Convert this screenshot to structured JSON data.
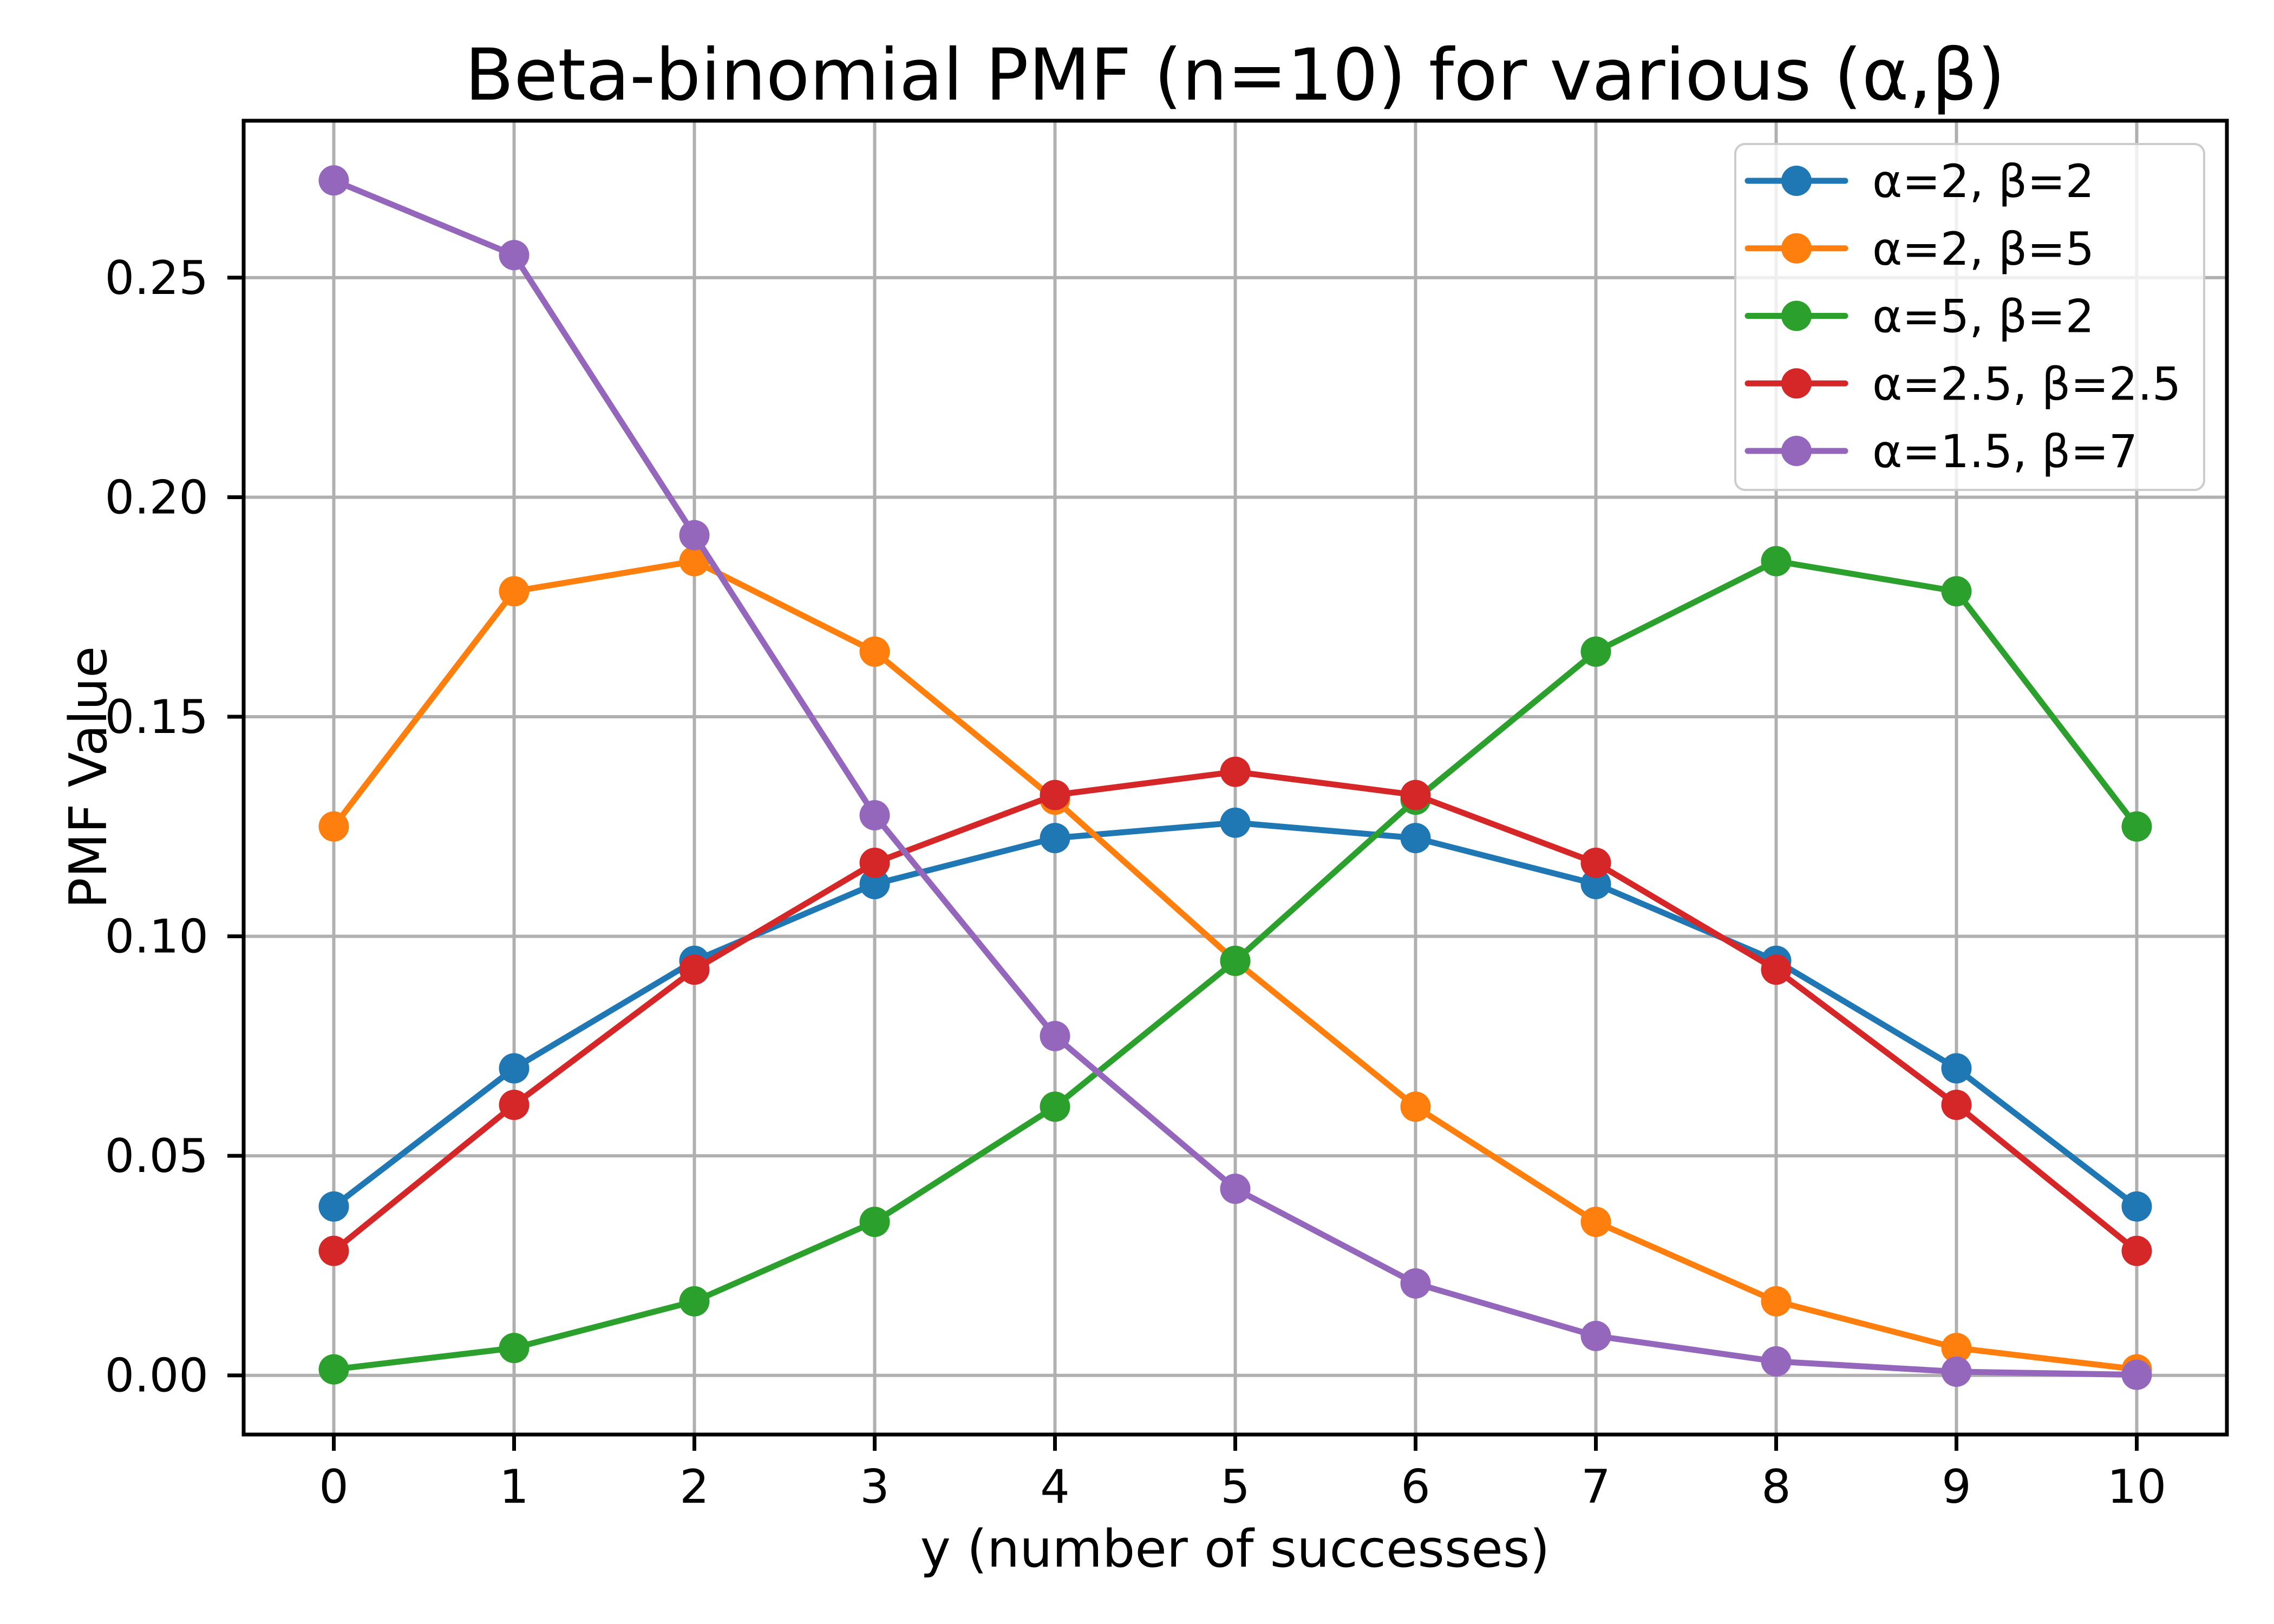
{
  "chart_data": {
    "type": "line",
    "title": "Beta-binomial PMF (n=10) for various (α,β)",
    "xlabel": "y (number of successes)",
    "ylabel": "PMF Value",
    "n": 10,
    "x": [
      0,
      1,
      2,
      3,
      4,
      5,
      6,
      7,
      8,
      9,
      10
    ],
    "xlim": [
      -0.5,
      10.5
    ],
    "ylim": [
      -0.013475,
      0.285743
    ],
    "xticks": [
      0,
      1,
      2,
      3,
      4,
      5,
      6,
      7,
      8,
      9,
      10
    ],
    "xtick_labels": [
      "0",
      "1",
      "2",
      "3",
      "4",
      "5",
      "6",
      "7",
      "8",
      "9",
      "10"
    ],
    "yticks": [
      0.0,
      0.05,
      0.1,
      0.15,
      0.2,
      0.25
    ],
    "ytick_labels": [
      "0.00",
      "0.05",
      "0.10",
      "0.15",
      "0.20",
      "0.25"
    ],
    "grid": true,
    "grid_color": "#b0b0b0",
    "spine_color": "#000000",
    "text_color": "#000000",
    "marker": "o",
    "legend": {
      "position": "upper right",
      "frame": true,
      "border_color": "#cccccc",
      "background_color": "#ffffff"
    },
    "series": [
      {
        "name": "α=2, β=2",
        "color": "#1f77b4",
        "values": [
          0.03846,
          0.06993,
          0.09441,
          0.11189,
          0.12238,
          0.12587,
          0.12238,
          0.11189,
          0.09441,
          0.06993,
          0.03846
        ]
      },
      {
        "name": "α=2, β=5",
        "color": "#ff7f0e",
        "values": [
          0.125,
          0.17857,
          0.18544,
          0.16484,
          0.13112,
          0.0944,
          0.06119,
          0.03497,
          0.01686,
          0.00624,
          0.00137
        ]
      },
      {
        "name": "α=5, β=2",
        "color": "#2ca02c",
        "values": [
          0.00137,
          0.00624,
          0.01686,
          0.03497,
          0.06119,
          0.0944,
          0.13112,
          0.16484,
          0.18544,
          0.17857,
          0.125
        ]
      },
      {
        "name": "α=2.5, β=2.5",
        "color": "#d62728",
        "values": [
          0.02834,
          0.06161,
          0.09241,
          0.11673,
          0.13218,
          0.13747,
          0.13218,
          0.11673,
          0.09241,
          0.06161,
          0.02834
        ]
      },
      {
        "name": "α=1.5, β=7",
        "color": "#9467bd",
        "values": [
          0.27214,
          0.25514,
          0.19135,
          0.12757,
          0.07728,
          0.0425,
          0.02093,
          0.00897,
          0.00318,
          0.00084,
          0.00013
        ]
      }
    ]
  }
}
